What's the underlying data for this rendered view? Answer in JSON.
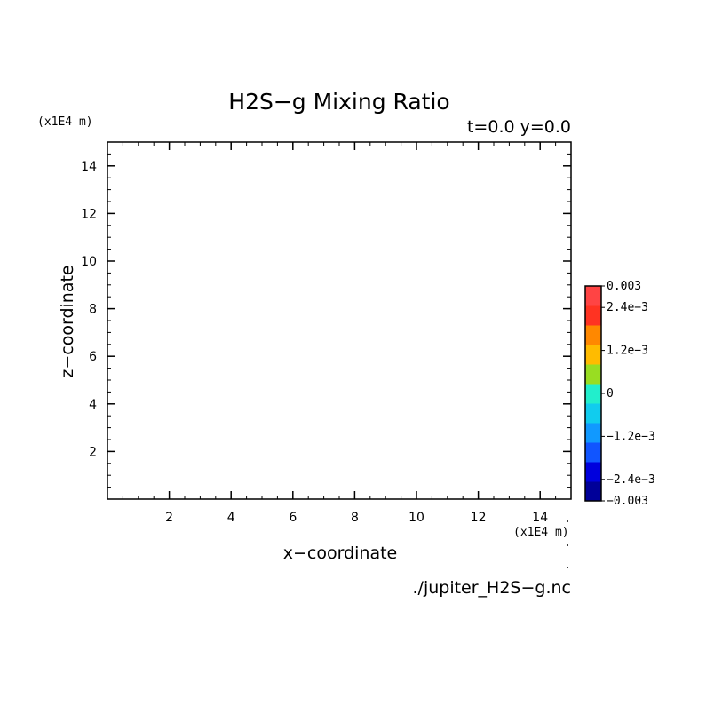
{
  "chart_data": {
    "type": "heatmap",
    "title": "H2S−g Mixing Ratio",
    "subtitle": "t=0.0 y=0.0",
    "xlabel": "x−coordinate",
    "ylabel": "z−coordinate",
    "x_unit": "(x1E4 m)",
    "y_unit": "(x1E4 m)",
    "xlim": [
      0,
      15
    ],
    "ylim": [
      0,
      15
    ],
    "x_ticks": [
      2,
      4,
      6,
      8,
      10,
      12,
      14
    ],
    "y_ticks": [
      2,
      4,
      6,
      8,
      10,
      12,
      14
    ],
    "x_minor_step": 0.5,
    "y_minor_step": 0.5,
    "grid": false,
    "filename": "./jupiter_H2S−g.nc",
    "colorbar": {
      "range": [
        -0.003,
        0.003
      ],
      "levels": 10,
      "colors": [
        "#000099",
        "#0000dd",
        "#1155ff",
        "#1199ff",
        "#11ccee",
        "#22eecc",
        "#99dd22",
        "#ffbb00",
        "#ff8800",
        "#ff3322",
        "#ff4444"
      ],
      "labels": [
        {
          "text": "0.003",
          "value": 0.003
        },
        {
          "text": "2.4e−3",
          "value": 0.0024
        },
        {
          "text": "1.2e−3",
          "value": 0.0012
        },
        {
          "text": "0",
          "value": 0
        },
        {
          "text": "−1.2e−3",
          "value": -0.0012
        },
        {
          "text": "−2.4e−3",
          "value": -0.0024
        },
        {
          "text": "−0.003",
          "value": -0.003
        }
      ]
    }
  }
}
